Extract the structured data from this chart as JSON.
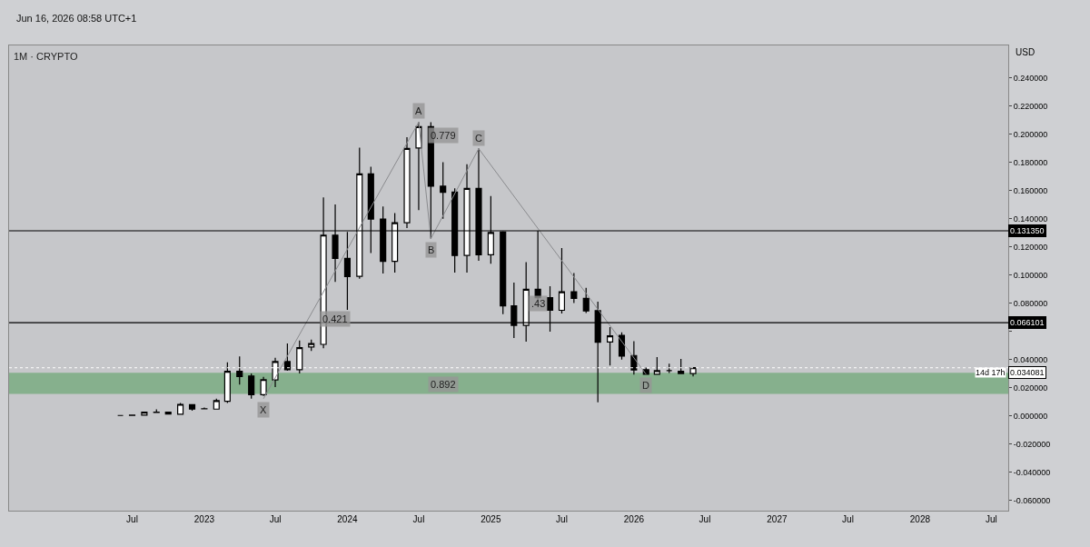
{
  "chart_data": {
    "type": "candlestick",
    "title": "1M · CRYPTO",
    "subtitle": "Jun 16, 2026 08:58 UTC+1",
    "ylabel": "USD",
    "x": [
      "2022-06",
      "2022-07",
      "2022-08",
      "2022-09",
      "2022-10",
      "2022-11",
      "2022-12",
      "2023-01",
      "2023-02",
      "2023-03",
      "2023-04",
      "2023-05",
      "2023-06",
      "2023-07",
      "2023-08",
      "2023-09",
      "2023-10",
      "2023-11",
      "2023-12",
      "2024-01",
      "2024-02",
      "2024-03",
      "2024-04",
      "2024-05",
      "2024-06",
      "2024-07",
      "2024-08",
      "2024-09",
      "2024-10",
      "2024-11",
      "2024-12",
      "2025-01",
      "2025-02",
      "2025-03",
      "2025-04",
      "2025-05",
      "2025-06",
      "2025-07",
      "2025-08",
      "2025-09",
      "2025-10",
      "2025-11",
      "2025-12",
      "2026-01",
      "2026-02",
      "2026-03",
      "2026-04",
      "2026-05",
      "2026-06"
    ],
    "series": [
      {
        "color": "#000000",
        "ohlc": [
          [
            0.0002,
            0.0003,
            0.0001,
            0.0002
          ],
          [
            0.0003,
            0.0005,
            0.0002,
            0.0004
          ],
          [
            0.0005,
            0.003,
            0.0005,
            0.0026
          ],
          [
            0.0024,
            0.0045,
            0.0022,
            0.0025
          ],
          [
            0.0026,
            0.003,
            0.001,
            0.0013
          ],
          [
            0.0011,
            0.009,
            0.001,
            0.0081
          ],
          [
            0.0079,
            0.008,
            0.0036,
            0.0047
          ],
          [
            0.0049,
            0.0058,
            0.0045,
            0.005
          ],
          [
            0.0047,
            0.0122,
            0.0045,
            0.0107
          ],
          [
            0.0103,
            0.0379,
            0.009,
            0.0316
          ],
          [
            0.0316,
            0.0421,
            0.0222,
            0.0278
          ],
          [
            0.0282,
            0.0301,
            0.0121,
            0.015
          ],
          [
            0.015,
            0.0276,
            0.0141,
            0.0257
          ],
          [
            0.0255,
            0.0411,
            0.0203,
            0.0385
          ],
          [
            0.0385,
            0.0513,
            0.032,
            0.0327
          ],
          [
            0.0327,
            0.0534,
            0.03,
            0.0483
          ],
          [
            0.0488,
            0.054,
            0.046,
            0.0513
          ],
          [
            0.0507,
            0.155,
            0.048,
            0.1283
          ],
          [
            0.1283,
            0.1501,
            0.095,
            0.1118
          ],
          [
            0.1118,
            0.1305,
            0.0752,
            0.0988
          ],
          [
            0.099,
            0.1904,
            0.0973,
            0.1718
          ],
          [
            0.1718,
            0.1769,
            0.1155,
            0.1397
          ],
          [
            0.1397,
            0.1486,
            0.101,
            0.1097
          ],
          [
            0.1097,
            0.144,
            0.1017,
            0.1371
          ],
          [
            0.1371,
            0.1978,
            0.1333,
            0.1899
          ],
          [
            0.1901,
            0.2085,
            0.1461,
            0.2053
          ],
          [
            0.2053,
            0.2085,
            0.1258,
            0.163
          ],
          [
            0.163,
            0.18,
            0.1399,
            0.1587
          ],
          [
            0.1589,
            0.1615,
            0.1016,
            0.1138
          ],
          [
            0.1138,
            0.1786,
            0.1016,
            0.1615
          ],
          [
            0.1615,
            0.1897,
            0.11,
            0.1144
          ],
          [
            0.1144,
            0.1561,
            0.108,
            0.1301
          ],
          [
            0.1305,
            0.1311,
            0.0722,
            0.0781
          ],
          [
            0.0781,
            0.0945,
            0.0552,
            0.0642
          ],
          [
            0.0642,
            0.1091,
            0.0527,
            0.0898
          ],
          [
            0.0898,
            0.1313,
            0.08,
            0.0839
          ],
          [
            0.0839,
            0.092,
            0.0598,
            0.0749
          ],
          [
            0.0749,
            0.1191,
            0.0727,
            0.0881
          ],
          [
            0.0881,
            0.1014,
            0.08,
            0.0834
          ],
          [
            0.0834,
            0.0909,
            0.073,
            0.0744
          ],
          [
            0.0746,
            0.081,
            0.0096,
            0.0522
          ],
          [
            0.0524,
            0.063,
            0.0357,
            0.0567
          ],
          [
            0.0571,
            0.0592,
            0.0399,
            0.0424
          ],
          [
            0.0428,
            0.053,
            0.0293,
            0.0325
          ],
          [
            0.0327,
            0.0342,
            0.0295,
            0.0295
          ],
          [
            0.0295,
            0.0417,
            0.0295,
            0.0321
          ],
          [
            0.0321,
            0.037,
            0.0303,
            0.0321
          ],
          [
            0.0316,
            0.0404,
            0.03,
            0.03
          ],
          [
            0.03,
            0.0342,
            0.0279,
            0.0341
          ]
        ]
      },
      {
        "type": "line",
        "color": "#8a8b8e",
        "x": [
          "2023-06",
          "2024-07",
          "2024-08",
          "2024-12",
          "2026-02"
        ],
        "values": [
          0.0121,
          0.2085,
          0.1258,
          0.1897,
          0.0295
        ]
      }
    ],
    "annotations": [
      {
        "text": "X",
        "x": "2023-06",
        "y": 0.0121
      },
      {
        "text": "A",
        "x": "2024-07",
        "y": 0.2085
      },
      {
        "text": "B",
        "x": "2024-08",
        "y": 0.1258
      },
      {
        "text": "C",
        "x": "2024-12",
        "y": 0.1897
      },
      {
        "text": "D",
        "x": "2026-02",
        "y": 0.0295
      },
      {
        "text": "0.421",
        "x": "2023-12",
        "y": 0.069
      },
      {
        "text": "0.779",
        "x": "2024-09",
        "y": 0.199
      },
      {
        "text": ".43",
        "x": "2025-05",
        "y": 0.0795
      },
      {
        "text": "0.892",
        "x": "2024-09",
        "y": 0.022
      },
      "14d 17h"
    ],
    "ref_lines": [
      {
        "axis": "y",
        "value": 0.13135,
        "label": "0.131350",
        "color": "#000000"
      },
      {
        "axis": "y",
        "value": 0.066101,
        "label": "0.066101",
        "color": "#000000"
      },
      {
        "axis": "y",
        "value": 0.034081,
        "label": "0.034081",
        "color": "#ffffff",
        "line_style": "dotted"
      }
    ],
    "bands": [
      {
        "axis": "y",
        "from": 0.0155,
        "to": 0.0305,
        "color": "#7aab82"
      }
    ],
    "xlim": [
      "2021-08-21",
      "2028-08-13"
    ],
    "xticks": [
      {
        "value": "2022-07",
        "label": "Jul"
      },
      {
        "value": "2023-01",
        "label": "2023"
      },
      {
        "value": "2023-07",
        "label": "Jul"
      },
      {
        "value": "2024-01",
        "label": "2024"
      },
      {
        "value": "2024-07",
        "label": "Jul"
      },
      {
        "value": "2025-01",
        "label": "2025"
      },
      {
        "value": "2025-07",
        "label": "Jul"
      },
      {
        "value": "2026-01",
        "label": "2026"
      },
      {
        "value": "2026-07",
        "label": "Jul"
      },
      {
        "value": "2027-01",
        "label": "2027"
      },
      {
        "value": "2027-07",
        "label": "Jul"
      },
      {
        "value": "2028-01",
        "label": "2028"
      },
      {
        "value": "2028-07",
        "label": "Jul"
      }
    ],
    "ylim": [
      -0.0674,
      0.263
    ],
    "yticks": [
      {
        "value": -0.06,
        "label": "-0.060000"
      },
      {
        "value": -0.04,
        "label": "-0.040000"
      },
      {
        "value": -0.02,
        "label": "-0.020000"
      },
      {
        "value": 0,
        "label": "0.000000"
      },
      {
        "value": 0.02,
        "label": "0.020000"
      },
      {
        "value": 0.04,
        "label": "0.040000"
      },
      {
        "value": 0.06,
        "label": null
      },
      {
        "value": 0.08,
        "label": "0.080000"
      },
      {
        "value": 0.1,
        "label": "0.100000"
      },
      {
        "value": 0.12,
        "label": "0.120000"
      },
      {
        "value": 0.14,
        "label": "0.140000"
      },
      {
        "value": 0.16,
        "label": "0.160000"
      },
      {
        "value": 0.18,
        "label": "0.180000"
      },
      {
        "value": 0.2,
        "label": "0.200000"
      },
      {
        "value": 0.22,
        "label": "0.220000"
      },
      {
        "value": 0.24,
        "label": "0.240000"
      }
    ],
    "grid": false
  }
}
